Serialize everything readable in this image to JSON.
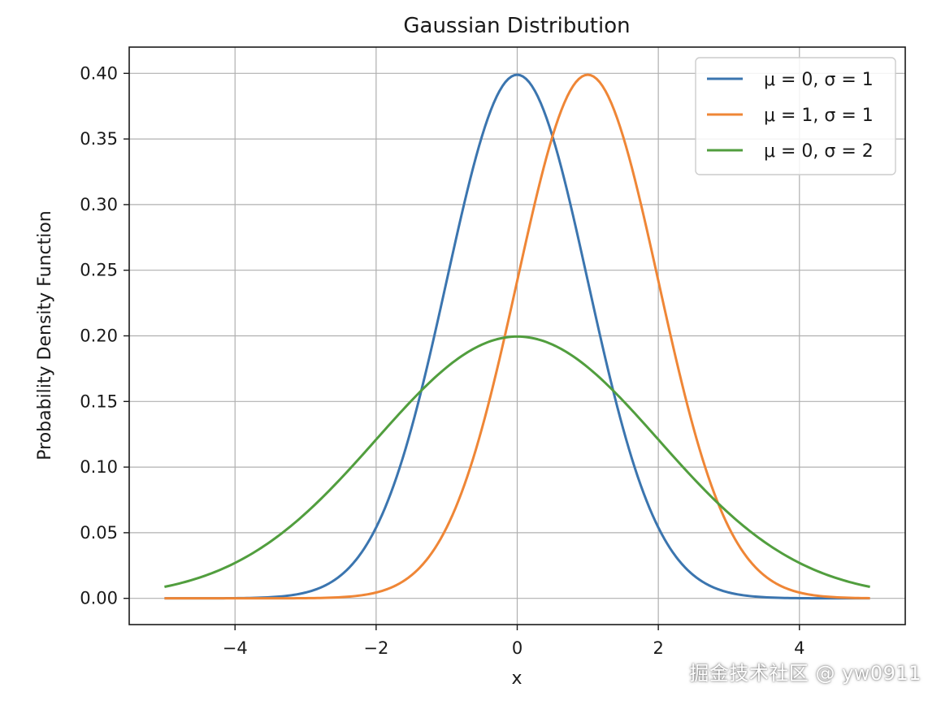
{
  "chart_data": {
    "type": "line",
    "title": "Gaussian Distribution",
    "xlabel": "x",
    "ylabel": "Probability Density Function",
    "xlim": [
      -5.5,
      5.5
    ],
    "ylim": [
      -0.02,
      0.42
    ],
    "x_ticks": [
      -4,
      -2,
      0,
      2,
      4
    ],
    "x_tick_labels": [
      "−4",
      "−2",
      "0",
      "2",
      "4"
    ],
    "y_ticks": [
      0.0,
      0.05,
      0.1,
      0.15,
      0.2,
      0.25,
      0.3,
      0.35,
      0.4
    ],
    "y_tick_labels": [
      "0.00",
      "0.05",
      "0.10",
      "0.15",
      "0.20",
      "0.25",
      "0.30",
      "0.35",
      "0.40"
    ],
    "grid": true,
    "legend_position": "top-right",
    "x_range": [
      -5,
      5
    ],
    "series": [
      {
        "name": "μ = 0, σ = 1",
        "mu": 0,
        "sigma": 1,
        "color": "#3b75af",
        "peak": {
          "x": 0,
          "y": 0.399
        }
      },
      {
        "name": "μ = 1, σ = 1",
        "mu": 1,
        "sigma": 1,
        "color": "#ef8636",
        "peak": {
          "x": 1,
          "y": 0.399
        }
      },
      {
        "name": "μ = 0, σ = 2",
        "mu": 0,
        "sigma": 2,
        "color": "#519e3e",
        "peak": {
          "x": 0,
          "y": 0.199
        }
      }
    ]
  },
  "watermark": "掘金技术社区 @ yw0911"
}
